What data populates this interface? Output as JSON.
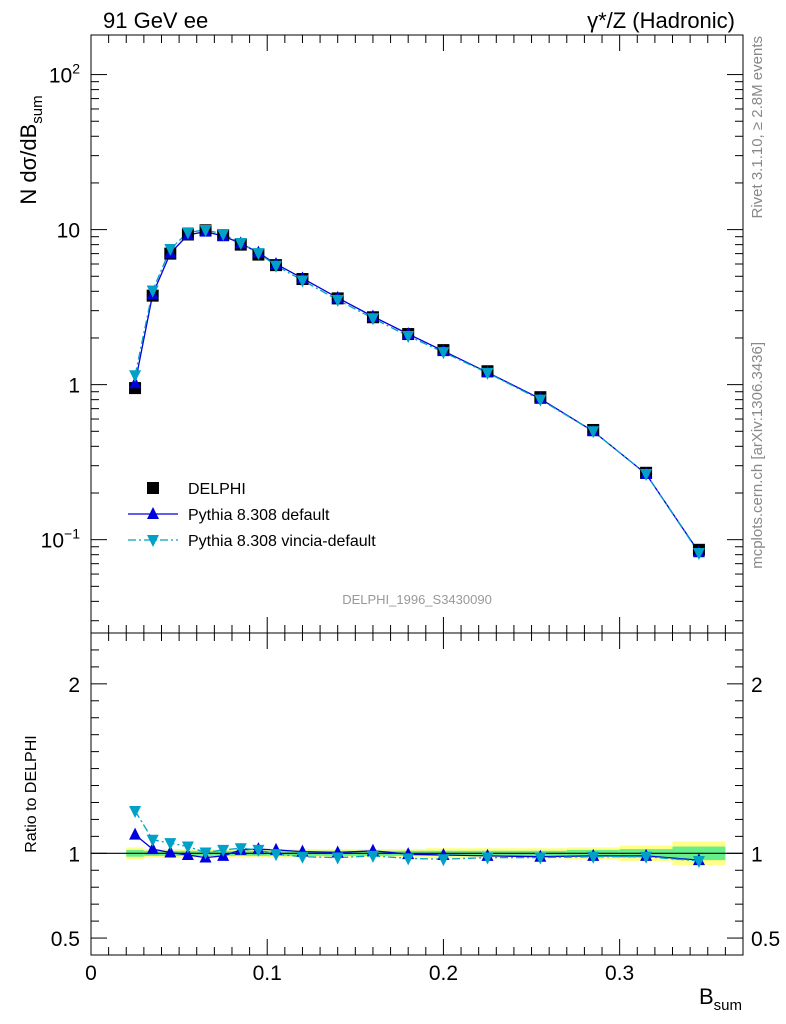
{
  "header": {
    "left": "91 GeV ee",
    "right": "γ*/Z (Hadronic)"
  },
  "side_labels": {
    "rivet": "Rivet 3.1.10, ≥ 2.8M events",
    "mcplots": "mcplots.cern.ch [arXiv:1306.3436]"
  },
  "analysis_id": "DELPHI_1996_S3430090",
  "colors": {
    "data": "#000000",
    "default": "#0000dd",
    "vincia": "#00a0c8",
    "band_inner": "#66ee88",
    "band_outer": "#ffff88"
  },
  "chart_data": [
    {
      "type": "line",
      "yscale": "log",
      "ylim": [
        0.025,
        180
      ],
      "xlim": [
        0,
        0.37
      ],
      "ylabel": "N dσ/dB",
      "ylabel_sub": "sum",
      "legend_position": "lower-left",
      "x": [
        0.025,
        0.035,
        0.045,
        0.055,
        0.065,
        0.075,
        0.085,
        0.095,
        0.105,
        0.12,
        0.14,
        0.16,
        0.18,
        0.2,
        0.225,
        0.255,
        0.285,
        0.315,
        0.345
      ],
      "series": [
        {
          "name": "DELPHI",
          "marker": "square",
          "values": [
            0.95,
            3.75,
            7.0,
            9.3,
            9.9,
            9.2,
            8.0,
            6.9,
            5.9,
            4.8,
            3.6,
            2.72,
            2.12,
            1.67,
            1.22,
            0.83,
            0.51,
            0.27,
            0.086
          ]
        },
        {
          "name": "Pythia 8.308 default",
          "marker": "triangle-up",
          "values": [
            1.02,
            3.83,
            7.03,
            9.25,
            9.7,
            9.1,
            8.15,
            7.1,
            6.0,
            4.85,
            3.63,
            2.75,
            2.12,
            1.65,
            1.2,
            0.81,
            0.5,
            0.265,
            0.083
          ]
        },
        {
          "name": "Pythia 8.308 vincia-default",
          "marker": "triangle-down",
          "values": [
            1.15,
            4.05,
            7.5,
            9.6,
            9.95,
            9.35,
            8.2,
            7.05,
            5.85,
            4.7,
            3.52,
            2.68,
            2.06,
            1.62,
            1.19,
            0.8,
            0.5,
            0.265,
            0.082
          ]
        }
      ]
    },
    {
      "type": "line",
      "ylim": [
        0.4,
        2.3
      ],
      "xlim": [
        0,
        0.37
      ],
      "ylabel": "Ratio to DELPHI",
      "xlabel": "B",
      "xlabel_sub": "sum",
      "reference": 1,
      "x": [
        0.025,
        0.035,
        0.045,
        0.055,
        0.065,
        0.075,
        0.085,
        0.095,
        0.105,
        0.12,
        0.14,
        0.16,
        0.18,
        0.2,
        0.225,
        0.255,
        0.285,
        0.315,
        0.345
      ],
      "bins": [
        {
          "lo": 0.02,
          "hi": 0.03,
          "inner": 0.02,
          "outer": 0.035
        },
        {
          "lo": 0.03,
          "hi": 0.04,
          "inner": 0.015,
          "outer": 0.025
        },
        {
          "lo": 0.04,
          "hi": 0.05,
          "inner": 0.015,
          "outer": 0.025
        },
        {
          "lo": 0.05,
          "hi": 0.06,
          "inner": 0.015,
          "outer": 0.025
        },
        {
          "lo": 0.06,
          "hi": 0.07,
          "inner": 0.015,
          "outer": 0.025
        },
        {
          "lo": 0.07,
          "hi": 0.08,
          "inner": 0.015,
          "outer": 0.025
        },
        {
          "lo": 0.08,
          "hi": 0.09,
          "inner": 0.015,
          "outer": 0.025
        },
        {
          "lo": 0.09,
          "hi": 0.1,
          "inner": 0.015,
          "outer": 0.025
        },
        {
          "lo": 0.1,
          "hi": 0.11,
          "inner": 0.015,
          "outer": 0.025
        },
        {
          "lo": 0.11,
          "hi": 0.13,
          "inner": 0.015,
          "outer": 0.025
        },
        {
          "lo": 0.13,
          "hi": 0.15,
          "inner": 0.015,
          "outer": 0.025
        },
        {
          "lo": 0.15,
          "hi": 0.17,
          "inner": 0.015,
          "outer": 0.025
        },
        {
          "lo": 0.17,
          "hi": 0.19,
          "inner": 0.015,
          "outer": 0.025
        },
        {
          "lo": 0.19,
          "hi": 0.21,
          "inner": 0.015,
          "outer": 0.03
        },
        {
          "lo": 0.21,
          "hi": 0.24,
          "inner": 0.015,
          "outer": 0.03
        },
        {
          "lo": 0.24,
          "hi": 0.27,
          "inner": 0.015,
          "outer": 0.03
        },
        {
          "lo": 0.27,
          "hi": 0.3,
          "inner": 0.02,
          "outer": 0.035
        },
        {
          "lo": 0.3,
          "hi": 0.33,
          "inner": 0.025,
          "outer": 0.045
        },
        {
          "lo": 0.33,
          "hi": 0.36,
          "inner": 0.04,
          "outer": 0.07
        }
      ],
      "series": [
        {
          "name": "Pythia 8.308 default",
          "marker": "triangle-up",
          "values": [
            1.11,
            1.025,
            1.005,
            0.99,
            0.975,
            0.985,
            1.02,
            1.025,
            1.02,
            1.01,
            1.005,
            1.015,
            0.995,
            0.99,
            0.985,
            0.98,
            0.985,
            0.985,
            0.96
          ]
        },
        {
          "name": "Pythia 8.308 vincia-default",
          "marker": "triangle-down",
          "values": [
            1.25,
            1.08,
            1.06,
            1.04,
            1.005,
            1.02,
            1.03,
            1.02,
            0.995,
            0.98,
            0.975,
            0.985,
            0.97,
            0.965,
            0.975,
            0.975,
            0.98,
            0.98,
            0.955
          ]
        }
      ]
    }
  ],
  "axes": {
    "top_y_ticks": [
      {
        "value": 0.1,
        "base": "10",
        "exp": "−1"
      },
      {
        "value": 1,
        "base": "1",
        "exp": ""
      },
      {
        "value": 10,
        "base": "10",
        "exp": ""
      },
      {
        "value": 100,
        "base": "10",
        "exp": "2"
      }
    ],
    "ratio_y_ticks": [
      "0.5",
      "1",
      "2"
    ],
    "ratio_y_tick_values": [
      0.5,
      1,
      2
    ],
    "x_ticks": [
      "0",
      "0.1",
      "0.2",
      "0.3"
    ],
    "x_tick_values": [
      0,
      0.1,
      0.2,
      0.3
    ]
  }
}
